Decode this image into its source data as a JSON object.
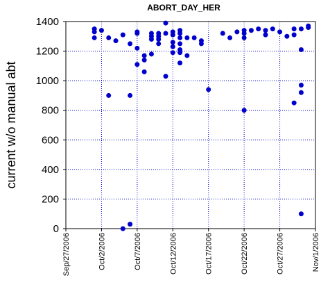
{
  "chart_data": {
    "type": "scatter",
    "title": "ABORT_DAY_HER",
    "y_label": "current w/o manual abt",
    "x": [
      "2006-10-01",
      "2006-10-01",
      "2006-10-01",
      "2006-10-02",
      "2006-10-03",
      "2006-10-03",
      "2006-10-04",
      "2006-10-05",
      "2006-10-05",
      "2006-10-06",
      "2006-10-06",
      "2006-10-06",
      "2006-10-07",
      "2006-10-07",
      "2006-10-07",
      "2006-10-07",
      "2006-10-08",
      "2006-10-08",
      "2006-10-08",
      "2006-10-09",
      "2006-10-09",
      "2006-10-09",
      "2006-10-09",
      "2006-10-10",
      "2006-10-10",
      "2006-10-10",
      "2006-10-10",
      "2006-10-11",
      "2006-10-11",
      "2006-10-11",
      "2006-10-12",
      "2006-10-12",
      "2006-10-12",
      "2006-10-12",
      "2006-10-12",
      "2006-10-13",
      "2006-10-13",
      "2006-10-13",
      "2006-10-13",
      "2006-10-13",
      "2006-10-13",
      "2006-10-13",
      "2006-10-14",
      "2006-10-14",
      "2006-10-15",
      "2006-10-16",
      "2006-10-16",
      "2006-10-17",
      "2006-10-19",
      "2006-10-20",
      "2006-10-21",
      "2006-10-22",
      "2006-10-22",
      "2006-10-22",
      "2006-10-22",
      "2006-10-23",
      "2006-10-24",
      "2006-10-25",
      "2006-10-25",
      "2006-10-26",
      "2006-10-27",
      "2006-10-28",
      "2006-10-29",
      "2006-10-29",
      "2006-10-29",
      "2006-10-30",
      "2006-10-30",
      "2006-10-30",
      "2006-10-30",
      "2006-10-30",
      "2006-10-31",
      "2006-10-31"
    ],
    "series": [
      {
        "color": "#0000cc",
        "values": [
          1350,
          1330,
          1290,
          1340,
          1290,
          900,
          1270,
          1310,
          0,
          1250,
          900,
          30,
          1330,
          1320,
          1220,
          1110,
          1170,
          1140,
          1060,
          1320,
          1300,
          1280,
          1180,
          1320,
          1300,
          1280,
          1250,
          1390,
          1320,
          1030,
          1330,
          1310,
          1260,
          1230,
          1190,
          1340,
          1320,
          1290,
          1250,
          1210,
          1190,
          1120,
          1290,
          1170,
          1290,
          1270,
          1250,
          940,
          1320,
          1290,
          1330,
          1340,
          1320,
          1290,
          800,
          1340,
          1350,
          1340,
          1310,
          1350,
          1330,
          1300,
          1350,
          1310,
          850,
          1350,
          1210,
          970,
          920,
          100,
          1370,
          1360
        ]
      }
    ],
    "xlim": [
      "2006-09-27",
      "2006-11-01"
    ],
    "xticks": [
      {
        "value": "2006-09-27",
        "label": "Sep/27/2006"
      },
      {
        "value": "2006-10-02",
        "label": "Oct/2/2006"
      },
      {
        "value": "2006-10-07",
        "label": "Oct/7/2006"
      },
      {
        "value": "2006-10-12",
        "label": "Oct/12/2006"
      },
      {
        "value": "2006-10-17",
        "label": "Oct/17/2006"
      },
      {
        "value": "2006-10-22",
        "label": "Oct/22/2006"
      },
      {
        "value": "2006-10-27",
        "label": "Oct/27/2006"
      },
      {
        "value": "2006-11-01",
        "label": "Nov/1/2006"
      }
    ],
    "ylim": [
      0,
      1400
    ],
    "yticks": [
      0,
      200,
      400,
      600,
      800,
      1000,
      1200,
      1400
    ],
    "grid": true
  }
}
